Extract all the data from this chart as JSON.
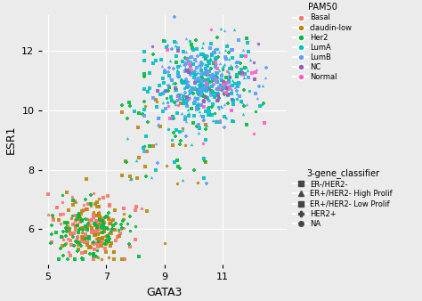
{
  "xlabel": "GATA3",
  "ylabel": "ESR1",
  "xlim": [
    4.8,
    13.2
  ],
  "ylim": [
    4.8,
    13.2
  ],
  "xticks": [
    5,
    7,
    9,
    11
  ],
  "yticks": [
    6,
    8,
    10,
    12
  ],
  "bg_color": "#EBEBEB",
  "grid_color": "#FFFFFF",
  "pam50_colors": {
    "Basal": "#F8766D",
    "claudin-low": "#B8860B",
    "Her2": "#00BA38",
    "LumA": "#00BFC4",
    "LumB": "#619CFF",
    "NC": "#9B59B6",
    "Normal": "#FF61C3"
  },
  "classifier_markers": {
    "ER-/HER2-": "s",
    "ER+/HER2- High Prolif": "^",
    "ER+/HER2- Low Prolif": "s",
    "HER2+": "P",
    "NA": "o"
  },
  "legend_pam50_title": "PAM50",
  "legend_classifier_title": "3-gene_classifier",
  "seed": 42,
  "n_lower": 300,
  "n_upper": 550,
  "n_mid": 80
}
